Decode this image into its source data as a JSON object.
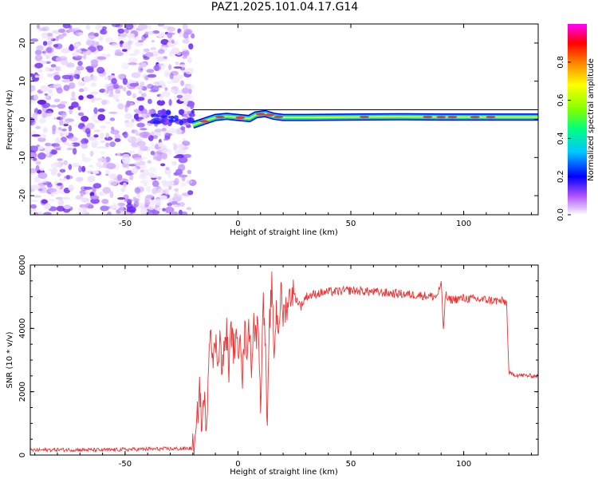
{
  "title": "PAZ1.2025.101.04.17.G14",
  "chart_data": [
    {
      "type": "heatmap",
      "xlabel": "Height of straight line (km)",
      "ylabel": "Frequency (Hz)",
      "xlim": [
        -92,
        133
      ],
      "ylim": [
        -25,
        25
      ],
      "xticks": [
        -50,
        0,
        50,
        100
      ],
      "yticks": [
        -20,
        -10,
        0,
        10,
        20
      ],
      "colorbar": {
        "label": "Normalized spectral amplitude",
        "range": [
          0.0,
          1.0
        ],
        "ticks": [
          "0.0",
          "0.2",
          "0.4",
          "0.6",
          "0.8"
        ],
        "colors": [
          "#ffffff",
          "#e0c8ff",
          "#b050ff",
          "#0000ff",
          "#00c8ff",
          "#00ff80",
          "#80ff00",
          "#ffff00",
          "#ff8000",
          "#ff0000",
          "#ff00ff"
        ]
      },
      "noise_region_x": [
        -92,
        -20
      ],
      "signal_trace": {
        "x": [
          -20,
          -15,
          -10,
          -5,
          0,
          5,
          8,
          12,
          16,
          20,
          30,
          50,
          70,
          90,
          110,
          133
        ],
        "frequency": [
          -1.5,
          -0.5,
          0.5,
          0.8,
          0.5,
          0.2,
          1.2,
          1.5,
          0.8,
          0.5,
          0.5,
          0.6,
          0.7,
          0.6,
          0.6,
          0.6
        ]
      }
    },
    {
      "type": "line",
      "xlabel": "Height of straight line (km)",
      "ylabel": "SNR (10 * v/v)",
      "xlim": [
        -92,
        133
      ],
      "ylim": [
        0,
        6000
      ],
      "xticks": [
        -50,
        0,
        50,
        100
      ],
      "yticks": [
        0,
        2000,
        4000,
        6000
      ],
      "color": "#ee3333",
      "x": [
        -92,
        -80,
        -60,
        -40,
        -25,
        -19,
        -18,
        -17,
        -16,
        -15,
        -14,
        -13,
        -12,
        -11,
        -10,
        -9,
        -8,
        -7,
        -6,
        -5,
        -4,
        -3,
        -2,
        -1,
        0,
        1,
        2,
        3,
        4,
        5,
        6,
        7,
        8,
        9,
        10,
        11,
        12,
        13,
        14,
        15,
        16,
        17,
        18,
        19,
        20,
        22,
        24,
        26,
        28,
        30,
        35,
        40,
        50,
        60,
        70,
        80,
        88,
        90,
        91,
        92,
        93,
        100,
        110,
        118,
        119,
        120,
        121,
        125,
        130,
        133
      ],
      "y": [
        150,
        170,
        160,
        190,
        200,
        220,
        1200,
        2200,
        800,
        2000,
        400,
        3300,
        4200,
        2800,
        3600,
        3000,
        3800,
        2600,
        3400,
        3900,
        2700,
        4100,
        3300,
        3700,
        3100,
        4200,
        2400,
        3900,
        3400,
        4000,
        2900,
        4300,
        3600,
        4500,
        1200,
        5000,
        3800,
        700,
        4200,
        5300,
        3200,
        4600,
        4000,
        5100,
        4400,
        4800,
        5200,
        4900,
        4700,
        5000,
        5100,
        5150,
        5200,
        5150,
        5100,
        5050,
        5000,
        5400,
        4000,
        5100,
        4900,
        4950,
        4900,
        4850,
        4800,
        2600,
        2550,
        2520,
        2500,
        2500
      ]
    }
  ]
}
